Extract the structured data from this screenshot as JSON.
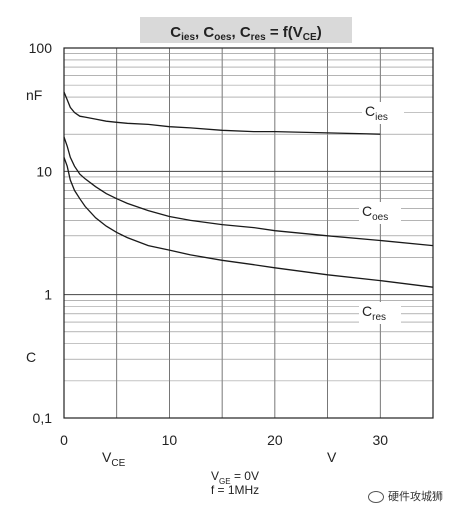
{
  "chart_data": {
    "type": "line",
    "title": {
      "main": "C",
      "parts": [
        {
          "base": "C",
          "sub": "ies"
        },
        {
          "base": "C",
          "sub": "oes"
        },
        {
          "base": "C",
          "sub": "res"
        }
      ],
      "rhs": "= f(V",
      "rhs_sub": "CE",
      "rhs_end": ")",
      "text": "Cies, Coes, Cres = f(VCE)"
    },
    "xlabel": {
      "base": "V",
      "sub": "CE"
    },
    "xunit": "V",
    "ylabel": "C",
    "yunit": "nF",
    "x_ticks": [
      "0",
      "10",
      "20",
      "30"
    ],
    "y_ticks": [
      "0,1",
      "1",
      "10",
      "100"
    ],
    "xlim": [
      0,
      35
    ],
    "ylim": [
      0.1,
      100
    ],
    "y_scale": "log",
    "grid": true,
    "conditions": [
      "V GE = 0V",
      "f = 1MHz"
    ],
    "conditions_parts": [
      {
        "base": "V",
        "sub": "GE",
        "rest": " = 0V"
      },
      {
        "base": "f = 1MHz",
        "sub": "",
        "rest": ""
      }
    ],
    "series": [
      {
        "name": "Cies",
        "label": {
          "base": "C",
          "sub": "ies"
        },
        "x": [
          0,
          0.3,
          0.6,
          1,
          1.5,
          2,
          3,
          4,
          5,
          6,
          8,
          10,
          12,
          15,
          18,
          20,
          25,
          30
        ],
        "y": [
          44,
          38,
          33,
          30,
          28,
          27.5,
          26.5,
          25.5,
          25,
          24.5,
          24,
          23,
          22.5,
          21.5,
          21,
          21,
          20.5,
          20
        ]
      },
      {
        "name": "Coes",
        "label": {
          "base": "C",
          "sub": "oes"
        },
        "x": [
          0,
          0.3,
          0.6,
          1,
          1.5,
          2,
          3,
          4,
          5,
          6,
          8,
          10,
          12,
          15,
          18,
          20,
          25,
          30,
          35
        ],
        "y": [
          19,
          16,
          13,
          11,
          9.5,
          8.7,
          7.5,
          6.6,
          6,
          5.5,
          4.8,
          4.3,
          4,
          3.7,
          3.5,
          3.3,
          3,
          2.75,
          2.5
        ]
      },
      {
        "name": "Cres",
        "label": {
          "base": "C",
          "sub": "res"
        },
        "x": [
          0,
          0.3,
          0.6,
          1,
          1.5,
          2,
          3,
          4,
          5,
          6,
          8,
          10,
          12,
          15,
          18,
          20,
          25,
          30,
          35
        ],
        "y": [
          13,
          11,
          8.5,
          7,
          6,
          5.2,
          4.2,
          3.6,
          3.2,
          2.9,
          2.5,
          2.3,
          2.1,
          1.9,
          1.75,
          1.65,
          1.45,
          1.3,
          1.15
        ]
      }
    ]
  },
  "watermark": {
    "icon": "wechat-icon",
    "text": "硬件攻城狮"
  }
}
